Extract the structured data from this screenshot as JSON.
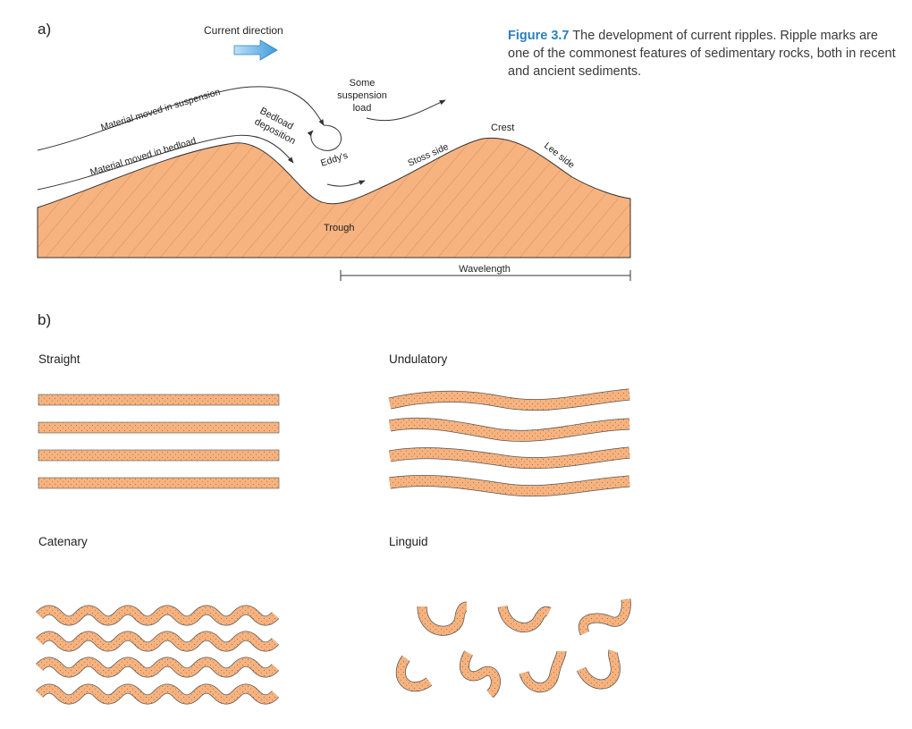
{
  "part_a": {
    "panel_label": "a)",
    "current_direction": "Current direction",
    "material_suspension": "Material moved in suspension",
    "material_bedload": "Material moved in bedload",
    "bedload_line1": "Bedload",
    "bedload_line2": "deposition",
    "some_line1": "Some",
    "some_line2": "suspension",
    "some_line3": "load",
    "eddys": "Eddy's",
    "stoss_side": "Stoss side",
    "crest": "Crest",
    "lee_side": "Lee side",
    "trough": "Trough",
    "wavelength": "Wavelength"
  },
  "caption": {
    "figure_number": "Figure 3.7",
    "text": "The development of current ripples. Ripple marks are one of the commonest features of sedimentary rocks, both in recent and ancient sediments."
  },
  "part_b": {
    "panel_label": "b)",
    "straight": "Straight",
    "undulatory": "Undulatory",
    "catenary": "Catenary",
    "linguid": "Linguid"
  },
  "colors": {
    "sediment": "#f7b37f",
    "sediment_line": "#d98a55",
    "arrow_blue": "#4da6e0",
    "stroke": "#333333",
    "caption_accent": "#2a7fc0"
  }
}
